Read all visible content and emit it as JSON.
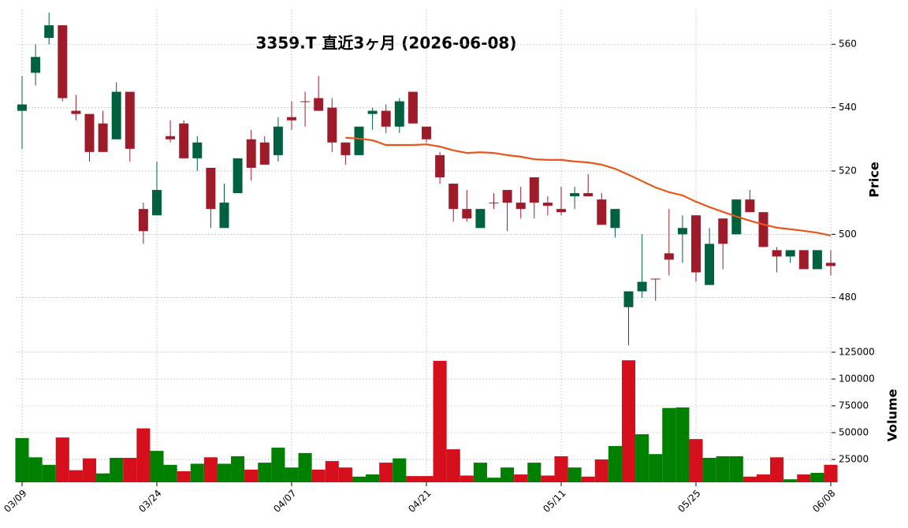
{
  "chart_data": {
    "type": "candlestick",
    "title": "3359.T 直近3ヶ月 (2026-06-08)",
    "ylabel": "Price",
    "categories": [
      "03/09",
      null,
      null,
      null,
      null,
      null,
      null,
      null,
      null,
      null,
      "03/24",
      null,
      null,
      null,
      null,
      null,
      null,
      null,
      null,
      null,
      "04/07",
      null,
      null,
      null,
      null,
      null,
      null,
      null,
      null,
      null,
      "04/21",
      null,
      null,
      null,
      null,
      null,
      null,
      null,
      null,
      null,
      "05/11",
      null,
      null,
      null,
      null,
      null,
      null,
      null,
      null,
      null,
      "05/25",
      null,
      null,
      null,
      null,
      null,
      null,
      null,
      null,
      null,
      "06/08"
    ],
    "open": [
      539,
      551,
      562,
      566,
      539,
      538,
      535,
      530,
      545,
      508,
      506,
      531,
      535,
      524,
      521,
      502,
      513,
      530,
      529,
      525,
      537,
      542,
      543,
      540,
      529,
      525,
      538,
      539,
      534,
      545,
      534,
      525,
      516,
      508,
      502,
      510,
      514,
      510,
      518,
      510,
      508,
      512,
      513,
      511,
      502,
      477,
      482,
      486,
      494,
      500,
      506,
      484,
      505,
      500,
      511,
      507,
      495,
      493,
      495,
      489,
      491
    ],
    "high": [
      550,
      560,
      570,
      566,
      544,
      538,
      539,
      548,
      545,
      510,
      523,
      536,
      536,
      531,
      521,
      516,
      524,
      533,
      531,
      537,
      542,
      545,
      550,
      543,
      529,
      534,
      540,
      541,
      543,
      545,
      534,
      526,
      516,
      514,
      508,
      513,
      514,
      515,
      518,
      512,
      515,
      515,
      519,
      513,
      508,
      482,
      500,
      486,
      508,
      506,
      506,
      502,
      505,
      511,
      514,
      507,
      496,
      495,
      495,
      495,
      495
    ],
    "low": [
      527,
      547,
      560,
      542,
      536,
      523,
      526,
      530,
      523,
      497,
      506,
      529,
      524,
      520,
      502,
      502,
      513,
      517,
      522,
      523,
      533,
      534,
      539,
      526,
      522,
      525,
      533,
      532,
      532,
      535,
      529,
      516,
      504,
      504,
      502,
      508,
      501,
      505,
      505,
      506,
      506,
      508,
      512,
      503,
      499,
      465,
      480,
      479,
      487,
      491,
      485,
      484,
      489,
      500,
      507,
      496,
      488,
      491,
      489,
      489,
      487
    ],
    "close": [
      541,
      556,
      566,
      543,
      538,
      526,
      526,
      545,
      527,
      501,
      514,
      530,
      524,
      529,
      508,
      510,
      524,
      521,
      522,
      534,
      536,
      542,
      539,
      529,
      525,
      534,
      539,
      534,
      542,
      535,
      530,
      518,
      508,
      505,
      508,
      510,
      510,
      508,
      510,
      509,
      507,
      513,
      512,
      503,
      508,
      482,
      485,
      486,
      492,
      502,
      488,
      497,
      497,
      511,
      507,
      496,
      493,
      495,
      489,
      495,
      490
    ],
    "up_color": "#00613e",
    "down_color": "#9e1b2a",
    "ylim": [
      464,
      571
    ],
    "yticks": [
      480,
      500,
      520,
      540,
      560
    ],
    "grid": true,
    "ma": {
      "color": "#e8561a",
      "values": [
        null,
        null,
        null,
        null,
        null,
        null,
        null,
        null,
        null,
        null,
        null,
        null,
        null,
        null,
        null,
        null,
        null,
        null,
        null,
        null,
        null,
        null,
        null,
        null,
        530.5,
        530.2,
        529.7,
        528.2,
        528.2,
        528.2,
        528.4,
        527.7,
        526.5,
        525.7,
        525.9,
        525.7,
        525,
        524.5,
        523.7,
        523.5,
        523.5,
        523,
        522.7,
        522,
        520.7,
        518.8,
        516.8,
        514.8,
        513.3,
        512.3,
        510.3,
        508.6,
        507.1,
        505.6,
        504.3,
        503.1,
        502.1,
        501.6,
        501.1,
        500.5,
        499.6
      ]
    },
    "volume": {
      "ylabel": "Volume",
      "up_color": "#008000",
      "down_color": "#d50f1b",
      "ylim": [
        3700,
        136000
      ],
      "yticks": [
        25000,
        50000,
        75000,
        100000,
        125000
      ],
      "values": [
        45000,
        27000,
        20000,
        45500,
        15000,
        26000,
        12000,
        26500,
        26500,
        54000,
        33000,
        20000,
        14000,
        21000,
        27000,
        21000,
        28000,
        15500,
        22000,
        36000,
        17500,
        31000,
        15500,
        23500,
        17500,
        9000,
        11000,
        22000,
        26000,
        9500,
        9500,
        117000,
        34500,
        10000,
        22000,
        8000,
        17500,
        11000,
        22000,
        10000,
        28000,
        17500,
        9000,
        25000,
        37500,
        117500,
        48500,
        30000,
        73000,
        73500,
        44000,
        26500,
        28000,
        28000,
        9000,
        11000,
        27000,
        6500,
        11000,
        12500,
        20000
      ]
    }
  }
}
